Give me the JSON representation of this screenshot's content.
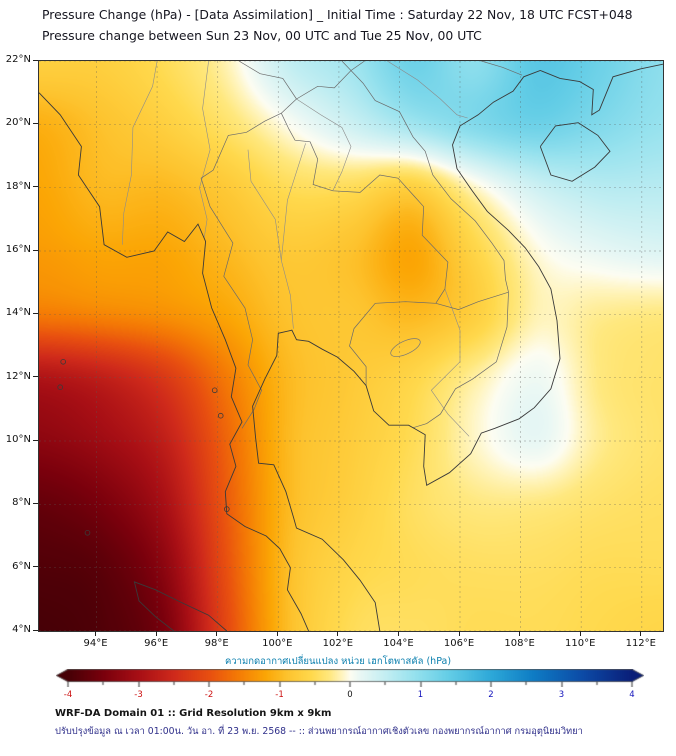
{
  "header": {
    "title_line1": "Pressure Change (hPa) - [Data Assimilation] _ Initial Time : Saturday 22 Nov, 18 UTC FCST+048",
    "title_line2": "Pressure change between Sun 23 Nov, 00 UTC and Tue 25 Nov, 00 UTC"
  },
  "axes": {
    "lat_tick_labels": [
      "22°N",
      "20°N",
      "18°N",
      "16°N",
      "14°N",
      "12°N",
      "10°N",
      "8°N",
      "6°N",
      "4°N"
    ],
    "lon_tick_labels": [
      "94°E",
      "96°E",
      "98°E",
      "100°E",
      "102°E",
      "104°E",
      "106°E",
      "108°E",
      "110°E",
      "112°E"
    ]
  },
  "colorbar": {
    "label": "ความกดอากาศเปลี่ยนแปลง หน่วย เฮกโตพาสคัล (hPa)",
    "tick_labels": [
      "-4",
      "-3",
      "-2",
      "-1",
      "0",
      "1",
      "2",
      "3",
      "4"
    ],
    "min": -4,
    "max": 4,
    "negative_label_color": "#cc1111",
    "zero_label_color": "#111111",
    "positive_label_color": "#1111bb"
  },
  "footer": {
    "line1": "WRF-DA Domain 01 :: Grid Resolution 9km x 9km",
    "line2": "ปรับปรุงข้อมูล ณ เวลา 01:00น. วัน อา. ที่ 23 พ.ย. 2568 -- :: ส่วนพยากรณ์อากาศเชิงตัวเลข กองพยากรณ์อากาศ กรมอุตุนิยมวิทยา"
  },
  "chart_data": {
    "type": "heatmap",
    "title": "Pressure Change (hPa) - [Data Assimilation] _ Initial Time : Saturday 22 Nov, 18 UTC FCST+048",
    "subtitle": "Pressure change between Sun 23 Nov, 00 UTC and Tue 25 Nov, 00 UTC",
    "value_units": "hPa",
    "lon_range": [
      92.1,
      112.7
    ],
    "lat_range": [
      4,
      22
    ],
    "lon_ticks": [
      94,
      96,
      98,
      100,
      102,
      104,
      106,
      108,
      110,
      112
    ],
    "lat_ticks": [
      22,
      20,
      18,
      16,
      14,
      12,
      10,
      8,
      6,
      4
    ],
    "grid_lons": [
      92.1,
      94.16,
      96.22,
      98.28,
      100.34,
      102.4,
      104.46,
      106.52,
      108.58,
      110.64,
      112.7
    ],
    "grid_lats_north_to_south": [
      22,
      20,
      18,
      16,
      14,
      12,
      10,
      8,
      6,
      4
    ],
    "pressure_change_hpa": [
      [
        -0.7,
        -0.7,
        -0.5,
        -0.15,
        0.5,
        0.8,
        1.3,
        1.0,
        1.5,
        1.3,
        1.0
      ],
      [
        -1.1,
        -0.9,
        -0.7,
        -0.4,
        0.0,
        0.4,
        0.8,
        1.1,
        1.3,
        1.1,
        0.9
      ],
      [
        -1.2,
        -1.0,
        -1.0,
        -0.8,
        -0.5,
        -0.5,
        -0.7,
        -0.1,
        0.4,
        0.6,
        0.6
      ],
      [
        -1.3,
        -1.2,
        -1.2,
        -1.0,
        -0.8,
        -0.9,
        -1.2,
        -0.6,
        -0.05,
        0.15,
        0.25
      ],
      [
        -1.6,
        -1.5,
        -1.4,
        -1.2,
        -0.9,
        -0.85,
        -1.0,
        -0.7,
        -0.15,
        -0.25,
        -0.3
      ],
      [
        -2.9,
        -2.7,
        -2.3,
        -1.6,
        -1.0,
        -0.8,
        -0.6,
        -0.2,
        0.1,
        -0.3,
        -0.4
      ],
      [
        -3.3,
        -3.1,
        -2.7,
        -1.8,
        -1.0,
        -0.75,
        -0.5,
        -0.1,
        0.15,
        -0.25,
        -0.4
      ],
      [
        -3.7,
        -3.5,
        -3.0,
        -1.9,
        -1.0,
        -0.7,
        -0.45,
        -0.3,
        -0.3,
        -0.4,
        -0.45
      ],
      [
        -3.9,
        -3.8,
        -3.3,
        -2.0,
        -0.95,
        -0.6,
        -0.5,
        -0.45,
        -0.45,
        -0.5,
        -0.5
      ],
      [
        -4.0,
        -3.9,
        -3.5,
        -2.1,
        -0.95,
        -0.5,
        -0.45,
        -0.5,
        -0.5,
        -0.55,
        -0.6
      ]
    ],
    "colorbar_range": [
      -4,
      4
    ],
    "colorbar_ticks": [
      -4,
      -3,
      -2,
      -1,
      0,
      1,
      2,
      3,
      4
    ],
    "grid_lines": "dashed",
    "colormap_stops": [
      {
        "v": -4.0,
        "c": "#470006"
      },
      {
        "v": -3.5,
        "c": "#7a000c"
      },
      {
        "v": -3.0,
        "c": "#a80f15"
      },
      {
        "v": -2.5,
        "c": "#cf2a1b"
      },
      {
        "v": -2.0,
        "c": "#e84f10"
      },
      {
        "v": -1.6,
        "c": "#f47a05"
      },
      {
        "v": -1.2,
        "c": "#fba605"
      },
      {
        "v": -0.9,
        "c": "#fdc32e"
      },
      {
        "v": -0.55,
        "c": "#ffd94d"
      },
      {
        "v": -0.3,
        "c": "#ffe87e"
      },
      {
        "v": -0.12,
        "c": "#fff5c0"
      },
      {
        "v": 0.0,
        "c": "#fdfdf2"
      },
      {
        "v": 0.15,
        "c": "#e8f7f4"
      },
      {
        "v": 0.5,
        "c": "#c3eef2"
      },
      {
        "v": 0.9,
        "c": "#97e2ee"
      },
      {
        "v": 1.4,
        "c": "#63cde6"
      },
      {
        "v": 2.0,
        "c": "#2da8d8"
      },
      {
        "v": 2.6,
        "c": "#0e7cc4"
      },
      {
        "v": 3.3,
        "c": "#0c4aa6"
      },
      {
        "v": 4.0,
        "c": "#0a1e78"
      }
    ]
  }
}
